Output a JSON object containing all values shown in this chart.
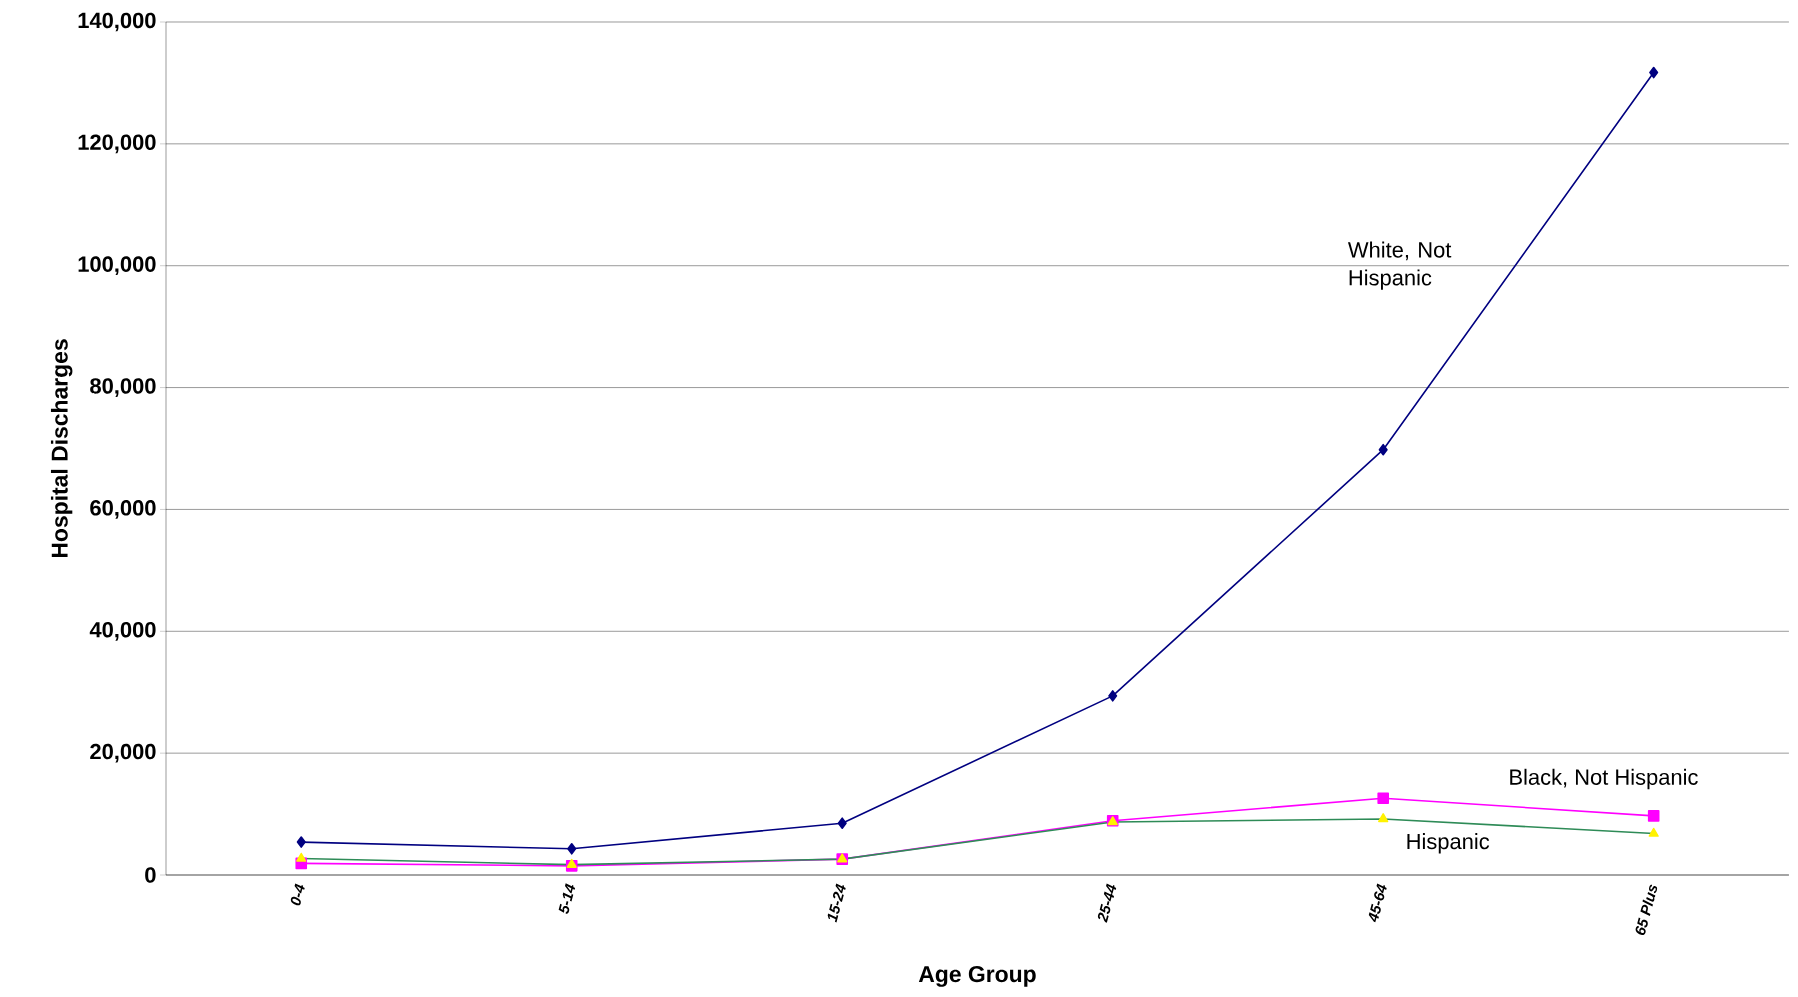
{
  "chart_data": {
    "type": "line",
    "xlabel": "Age Group",
    "ylabel": "Hospital Discharges",
    "categories": [
      "0-4",
      "5-14",
      "15-24",
      "25-44",
      "45-64",
      "65 Plus"
    ],
    "ylim": [
      0,
      140000
    ],
    "yticks": [
      {
        "value": 0,
        "label": "0"
      },
      {
        "value": 20000,
        "label": "20,000"
      },
      {
        "value": 40000,
        "label": "40,000"
      },
      {
        "value": 60000,
        "label": "60,000"
      },
      {
        "value": 80000,
        "label": "80,000"
      },
      {
        "value": 100000,
        "label": "100,000"
      },
      {
        "value": 120000,
        "label": "120,000"
      },
      {
        "value": 140000,
        "label": "140,000"
      }
    ],
    "grid": "y",
    "line_style": "solid",
    "series": [
      {
        "name": "White, Not Hispanic",
        "color": "#000080",
        "marker": "diamond",
        "values": [
          5400,
          4300,
          8500,
          29400,
          69800,
          131700
        ]
      },
      {
        "name": "Black, Not Hispanic",
        "color": "#ff00ff",
        "marker": "square",
        "values": [
          1900,
          1500,
          2600,
          8900,
          12600,
          9700
        ]
      },
      {
        "name": "Hispanic",
        "color": "#2e8b57",
        "marker": "triangle",
        "values": [
          2700,
          1700,
          2600,
          8700,
          9200,
          6800
        ]
      }
    ]
  }
}
